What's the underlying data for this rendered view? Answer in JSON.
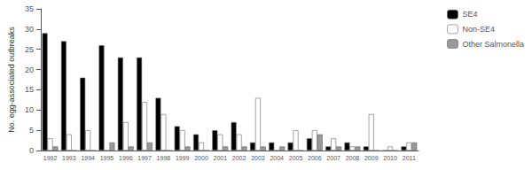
{
  "chart_data": {
    "type": "bar",
    "categories": [
      "1992",
      "1993",
      "1994",
      "1995",
      "1996",
      "1997",
      "1998",
      "1999",
      "2000",
      "2001",
      "2002",
      "2003",
      "2004",
      "2005",
      "2006",
      "2007",
      "2008",
      "2009",
      "2010",
      "2011"
    ],
    "series": [
      {
        "name": "SE4",
        "color": "#000000",
        "values": [
          29,
          27,
          18,
          26,
          23,
          23,
          13,
          6,
          4,
          5,
          7,
          2,
          2,
          2,
          3,
          1,
          2,
          1,
          0,
          1
        ]
      },
      {
        "name": "Non-SE4",
        "color": "#ffffff",
        "values": [
          3,
          4,
          5,
          0,
          7,
          12,
          9,
          5,
          2,
          4,
          4,
          13,
          0,
          5,
          5,
          3,
          1,
          9,
          1,
          2
        ]
      },
      {
        "name": "Other Salmonella",
        "color": "#999999",
        "values": [
          1,
          0,
          0,
          2,
          1,
          2,
          0,
          1,
          0,
          1,
          1,
          1,
          1,
          0,
          4,
          1,
          1,
          0,
          0,
          2
        ]
      }
    ],
    "ylabel": "No. egg-associated outbreaks",
    "ylim": [
      0,
      35
    ],
    "yticks": [
      0,
      5,
      10,
      15,
      20,
      25,
      30,
      35
    ],
    "grid": false,
    "legend": "right"
  }
}
